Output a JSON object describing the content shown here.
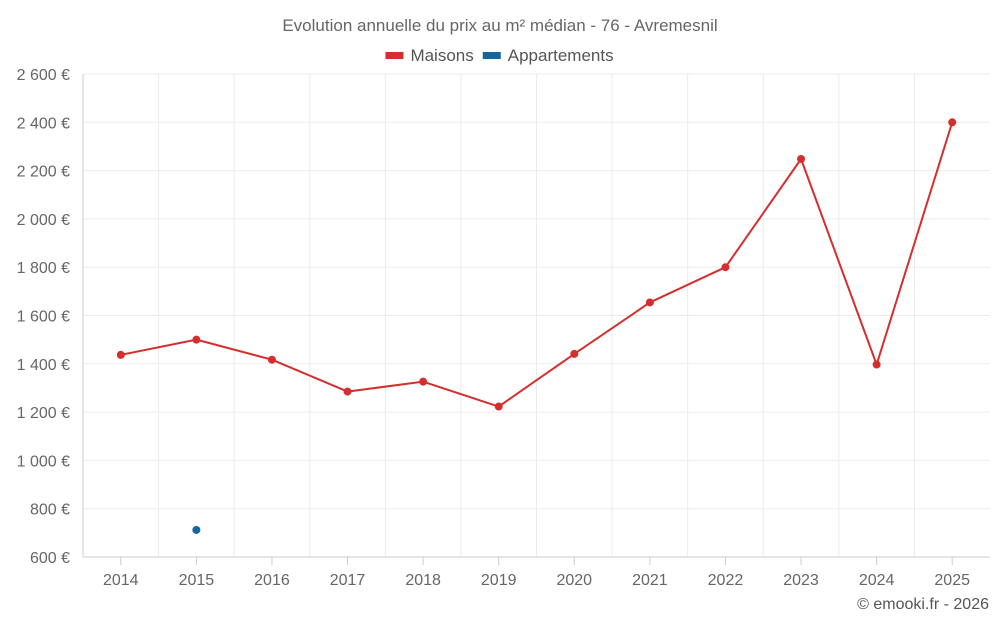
{
  "chart_data": {
    "type": "line",
    "title": "Evolution annuelle du prix au m² médian - 76 - Avremesnil",
    "xlabel": "",
    "ylabel": "",
    "categories": [
      "2014",
      "2015",
      "2016",
      "2017",
      "2018",
      "2019",
      "2020",
      "2021",
      "2022",
      "2023",
      "2024",
      "2025"
    ],
    "ylim": [
      600,
      2600
    ],
    "yticks": [
      600,
      800,
      1000,
      1200,
      1400,
      1600,
      1800,
      2000,
      2200,
      2400,
      2600
    ],
    "ytick_labels": [
      "600 €",
      "800 €",
      "1 000 €",
      "1 200 €",
      "1 400 €",
      "1 600 €",
      "1 800 €",
      "2 000 €",
      "2 200 €",
      "2 400 €",
      "2 600 €"
    ],
    "grid": true,
    "legend_position": "top-center",
    "series": [
      {
        "name": "Maisons",
        "color": "#d32f2f",
        "values": [
          1437,
          1500,
          1417,
          1285,
          1326,
          1223,
          1441,
          1654,
          1800,
          2248,
          1397,
          2400
        ]
      },
      {
        "name": "Appartements",
        "color": "#1565a0",
        "values": [
          null,
          712,
          null,
          null,
          null,
          null,
          null,
          null,
          null,
          null,
          null,
          null
        ]
      }
    ]
  },
  "credit": "© emooki.fr - 2026"
}
